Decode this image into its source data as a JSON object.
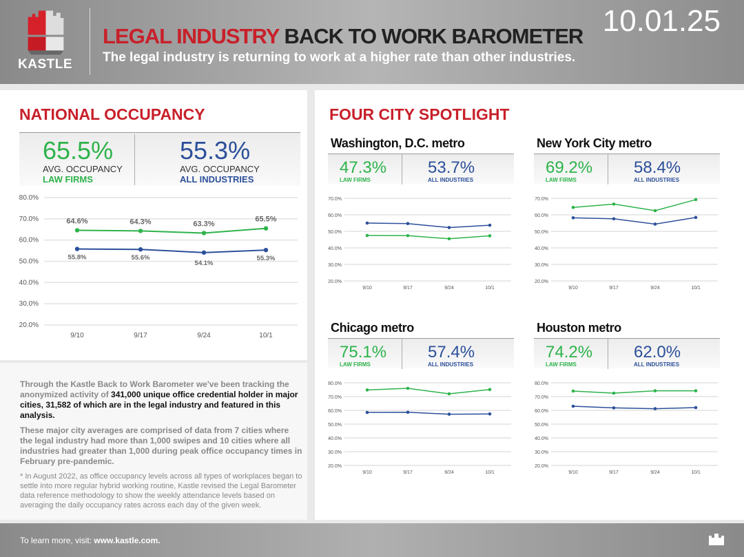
{
  "header": {
    "logo_text": "KASTLE",
    "title_red": "LEGAL INDUSTRY",
    "title_dark": "BACK TO WORK BAROMETER",
    "subtitle": "The legal industry is returning to work at a higher rate than other industries.",
    "date": "10.01.25"
  },
  "colors": {
    "brand_red": "#c8202a",
    "law": "#2db34a",
    "all": "#2b4f9a"
  },
  "national": {
    "title": "NATIONAL OCCUPANCY",
    "law_value": "65.5%",
    "law_caption": "AVG. OCCUPANCY",
    "law_label": "LAW FIRMS",
    "all_value": "55.3%",
    "all_caption": "AVG. OCCUPANCY",
    "all_label": "ALL INDUSTRIES"
  },
  "spotlight": {
    "title": "FOUR CITY SPOTLIGHT"
  },
  "cities": [
    {
      "name": "Washington, D.C. metro",
      "law_value": "47.3%",
      "law_label": "LAW FIRMS",
      "all_value": "53.7%",
      "all_label": "ALL INDUSTRIES"
    },
    {
      "name": "New York City metro",
      "law_value": "69.2%",
      "law_label": "LAW FIRMS",
      "all_value": "58.4%",
      "all_label": "ALL INDUSTRIES"
    },
    {
      "name": "Chicago metro",
      "law_value": "75.1%",
      "law_label": "LAW FIRMS",
      "all_value": "57.4%",
      "all_label": "ALL INDUSTRIES"
    },
    {
      "name": "Houston metro",
      "law_value": "74.2%",
      "law_label": "LAW FIRMS",
      "all_value": "62.0%",
      "all_label": "ALL INDUSTRIES"
    }
  ],
  "chart_data": [
    {
      "type": "line",
      "title": "NATIONAL OCCUPANCY",
      "categories": [
        "9/10",
        "9/17",
        "9/24",
        "10/1"
      ],
      "ylim": [
        20,
        80
      ],
      "yticks": [
        "20.0%",
        "30.0%",
        "40.0%",
        "50.0%",
        "60.0%",
        "70.0%",
        "80.0%"
      ],
      "grid": true,
      "series": [
        {
          "name": "LAW FIRMS",
          "values": [
            64.6,
            64.3,
            63.3,
            65.5
          ],
          "labels": [
            "64.6%",
            "64.3%",
            "63.3%",
            "65.5%"
          ],
          "color": "#2db34a"
        },
        {
          "name": "ALL INDUSTRIES",
          "values": [
            55.8,
            55.6,
            54.1,
            55.3
          ],
          "labels": [
            "55.8%",
            "55.6%",
            "54.1%",
            "55.3%"
          ],
          "color": "#2b4f9a"
        }
      ]
    },
    {
      "type": "line",
      "title": "Washington, D.C. metro",
      "categories": [
        "9/10",
        "9/17",
        "9/24",
        "10/1"
      ],
      "ylim": [
        20,
        70
      ],
      "yticks": [
        "20.0%",
        "30.0%",
        "40.0%",
        "50.0%",
        "60.0%",
        "70.0%"
      ],
      "grid": true,
      "series": [
        {
          "name": "LAW FIRMS",
          "values": [
            47.5,
            47.4,
            45.5,
            47.3
          ],
          "color": "#2db34a"
        },
        {
          "name": "ALL INDUSTRIES",
          "values": [
            55.0,
            54.7,
            52.3,
            53.7
          ],
          "color": "#2b4f9a"
        }
      ]
    },
    {
      "type": "line",
      "title": "New York City metro",
      "categories": [
        "9/10",
        "9/17",
        "9/24",
        "10/1"
      ],
      "ylim": [
        20,
        70
      ],
      "yticks": [
        "20.0%",
        "30.0%",
        "40.0%",
        "50.0%",
        "60.0%",
        "70.0%"
      ],
      "grid": true,
      "series": [
        {
          "name": "LAW FIRMS",
          "values": [
            64.5,
            66.5,
            62.5,
            69.2
          ],
          "color": "#2db34a"
        },
        {
          "name": "ALL INDUSTRIES",
          "values": [
            58.2,
            57.6,
            54.4,
            58.4
          ],
          "color": "#2b4f9a"
        }
      ]
    },
    {
      "type": "line",
      "title": "Chicago metro",
      "categories": [
        "9/10",
        "9/17",
        "9/24",
        "10/1"
      ],
      "ylim": [
        20,
        80
      ],
      "yticks": [
        "20.0%",
        "30.0%",
        "40.0%",
        "50.0%",
        "60.0%",
        "70.0%",
        "80.0%"
      ],
      "grid": true,
      "series": [
        {
          "name": "LAW FIRMS",
          "values": [
            74.8,
            76.0,
            72.0,
            75.1
          ],
          "color": "#2db34a"
        },
        {
          "name": "ALL INDUSTRIES",
          "values": [
            58.5,
            58.6,
            57.2,
            57.4
          ],
          "color": "#2b4f9a"
        }
      ]
    },
    {
      "type": "line",
      "title": "Houston metro",
      "categories": [
        "9/10",
        "9/17",
        "9/24",
        "10/1"
      ],
      "ylim": [
        20,
        80
      ],
      "yticks": [
        "20.0%",
        "30.0%",
        "40.0%",
        "50.0%",
        "60.0%",
        "70.0%",
        "80.0%"
      ],
      "grid": true,
      "series": [
        {
          "name": "LAW FIRMS",
          "values": [
            74.0,
            72.5,
            74.2,
            74.2
          ],
          "color": "#2db34a"
        },
        {
          "name": "ALL INDUSTRIES",
          "values": [
            63.0,
            61.8,
            61.2,
            62.0
          ],
          "color": "#2b4f9a"
        }
      ]
    }
  ],
  "body": {
    "p1_plain": "Through the Kastle Back to Work Barometer we've been tracking the anonymized activity of ",
    "p1_bold": "341,000 unique office credential holder in major cities, 31,582 of which are in the legal industry and featured in this analysis.",
    "p2": "These major city averages are comprised of data from 7 cities where the legal industry had more than 1,000 swipes and 10 cities where all industries had greater than 1,000 during peak office occupancy times in February pre-pandemic.",
    "p3": "* In August 2022, as office occupancy levels across all types of workplaces began to settle into more regular hybrid working routine, Kastle revised the Legal Barometer data reference methodology to show the weekly attendance levels based on averaging the daily occupancy rates across each day of the given week."
  },
  "footer": {
    "text": "To learn more, visit: ",
    "link": "www.kastle.com."
  }
}
